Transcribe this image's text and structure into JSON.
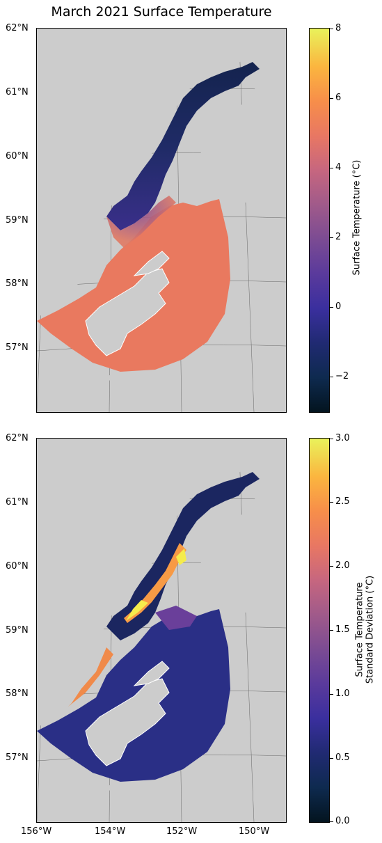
{
  "title": "March 2021 Surface Temperature",
  "latitude_labels": [
    "62°N",
    "61°N",
    "60°N",
    "59°N",
    "58°N",
    "57°N"
  ],
  "longitude_labels": [
    "156°W",
    "154°W",
    "152°W",
    "150°W"
  ],
  "top_panel": {
    "colorbar_label": "Surface Temperature (°C)",
    "colorbar_ticks": [
      "8",
      "6",
      "4",
      "2",
      "0",
      "−2"
    ],
    "colorbar_range": [
      -3,
      8
    ]
  },
  "bottom_panel": {
    "colorbar_label_line1": "Surface Temperature",
    "colorbar_label_line2": "Standard Deviation (°C)",
    "colorbar_ticks": [
      "3.0",
      "2.5",
      "2.0",
      "1.5",
      "1.0",
      "0.5",
      "0.0"
    ],
    "colorbar_range": [
      0,
      3
    ]
  },
  "colors": {
    "land": "#cccccc",
    "top_ocean_main": "#e9795f",
    "top_inlet": "#1b2a5c",
    "bottom_ocean_main": "#2a2f86",
    "bottom_hotspot": "#f7e04a"
  }
}
